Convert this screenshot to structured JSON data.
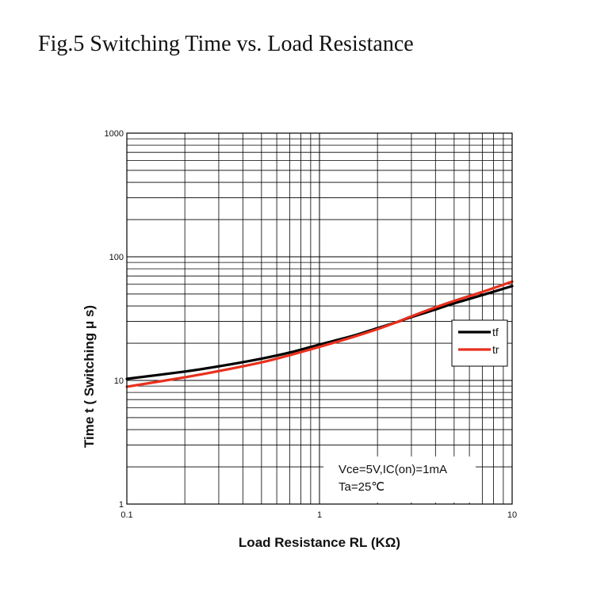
{
  "figure_title": "Fig.5 Switching Time vs. Load Resistance",
  "chart_data": {
    "type": "line",
    "xscale": "log",
    "yscale": "log",
    "xlim": [
      0.1,
      10
    ],
    "ylim": [
      1,
      1000
    ],
    "xticks": [
      0.1,
      1,
      10
    ],
    "xtick_labels": [
      "0.1",
      "1",
      "10"
    ],
    "yticks": [
      1,
      10,
      100,
      1000
    ],
    "ytick_labels": [
      "1",
      "10",
      "100",
      "1000"
    ],
    "xlabel": "Load Resistance RL (KΩ)",
    "ylabel": "Time t ( Switching μ s)",
    "grid": true,
    "legend_position": "right",
    "annotations": [
      "Vce=5V,IC(on)=1mA",
      "Ta=25℃"
    ],
    "series": [
      {
        "name": "tf",
        "color": "#000000",
        "x": [
          0.1,
          0.2,
          0.3,
          0.5,
          0.7,
          1,
          1.5,
          2,
          2.5,
          3,
          4,
          5,
          7,
          10
        ],
        "y": [
          10.3,
          11.8,
          13,
          15,
          16.8,
          19.5,
          23,
          26.5,
          29.5,
          32.5,
          37.5,
          42,
          49,
          58
        ]
      },
      {
        "name": "tr",
        "color": "#e8301e",
        "x": [
          0.1,
          0.2,
          0.3,
          0.5,
          0.7,
          1,
          1.5,
          2,
          2.5,
          3,
          4,
          5,
          7,
          10
        ],
        "y": [
          8.9,
          10.6,
          11.9,
          14,
          16,
          18.7,
          22.5,
          26,
          29.5,
          33,
          39,
          44,
          52,
          63
        ]
      }
    ]
  }
}
